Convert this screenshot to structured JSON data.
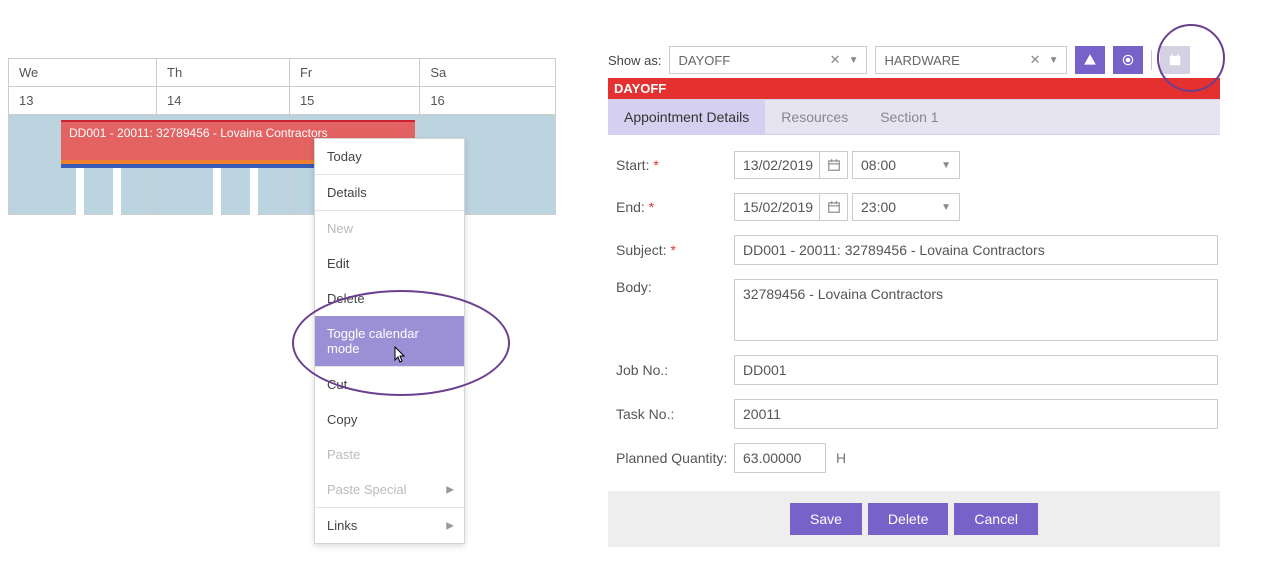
{
  "calendar": {
    "days": [
      "We",
      "Th",
      "Fr",
      "Sa"
    ],
    "dates": [
      "13",
      "14",
      "15",
      "16"
    ],
    "event_label": "DD001 - 20011: 32789456 - Lovaina Contractors"
  },
  "context_menu": {
    "items": [
      {
        "label": "Today",
        "disabled": false,
        "highlight": false,
        "sep": false,
        "arrow": false
      },
      {
        "label": "Details",
        "disabled": false,
        "highlight": false,
        "sep": true,
        "arrow": false
      },
      {
        "label": "New",
        "disabled": true,
        "highlight": false,
        "sep": true,
        "arrow": false
      },
      {
        "label": "Edit",
        "disabled": false,
        "highlight": false,
        "sep": false,
        "arrow": false
      },
      {
        "label": "Delete",
        "disabled": false,
        "highlight": false,
        "sep": false,
        "arrow": false
      },
      {
        "label": "Toggle calendar mode",
        "disabled": false,
        "highlight": true,
        "sep": false,
        "arrow": false
      },
      {
        "label": "Cut",
        "disabled": false,
        "highlight": false,
        "sep": true,
        "arrow": false
      },
      {
        "label": "Copy",
        "disabled": false,
        "highlight": false,
        "sep": false,
        "arrow": false
      },
      {
        "label": "Paste",
        "disabled": true,
        "highlight": false,
        "sep": false,
        "arrow": false
      },
      {
        "label": "Paste Special",
        "disabled": true,
        "highlight": false,
        "sep": false,
        "arrow": true
      },
      {
        "label": "Links",
        "disabled": false,
        "highlight": false,
        "sep": true,
        "arrow": true
      }
    ]
  },
  "details": {
    "show_as_label": "Show as:",
    "tag1": "DAYOFF",
    "tag2": "HARDWARE",
    "red_banner": "DAYOFF",
    "tabs": [
      "Appointment Details",
      "Resources",
      "Section 1"
    ],
    "active_tab": 0,
    "start_label": "Start:",
    "end_label": "End:",
    "subject_label": "Subject:",
    "body_label": "Body:",
    "job_label": "Job No.:",
    "task_label": "Task No.:",
    "qty_label": "Planned Quantity:",
    "start_date": "13/02/2019",
    "start_time": "08:00",
    "end_date": "15/02/2019",
    "end_time": "23:00",
    "subject": "DD001 - 20011: 32789456 - Lovaina Contractors",
    "body": "32789456 - Lovaina Contractors",
    "job_no": "DD001",
    "task_no": "20011",
    "qty": "63.00000",
    "unit": "H",
    "save": "Save",
    "delete": "Delete",
    "cancel": "Cancel"
  },
  "colors": {
    "accent": "#7662c9",
    "red": "#e53030",
    "cal_blue": "#bcd4e0",
    "event_red": "#e36363",
    "annotation": "#6b3f8f"
  }
}
